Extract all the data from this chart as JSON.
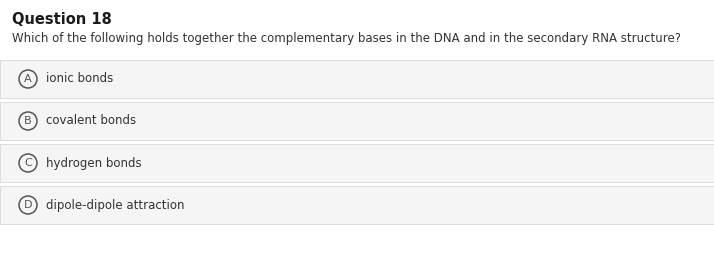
{
  "title": "Question 18",
  "question": "Which of the following holds together the complementary bases in the DNA and in the secondary RNA structure?",
  "options": [
    {
      "label": "A",
      "text": "ionic bonds"
    },
    {
      "label": "B",
      "text": "covalent bonds"
    },
    {
      "label": "C",
      "text": "hydrogen bonds"
    },
    {
      "label": "D",
      "text": "dipole-dipole attraction"
    }
  ],
  "background_color": "#ffffff",
  "option_bg_color": "#f5f5f5",
  "option_border_color": "#d8d8d8",
  "title_color": "#1a1a1a",
  "question_color": "#333333",
  "option_text_color": "#333333",
  "circle_color": "#555555",
  "title_fontsize": 10.5,
  "question_fontsize": 8.5,
  "option_fontsize": 8.5,
  "fig_width": 7.14,
  "fig_height": 2.7,
  "dpi": 100
}
